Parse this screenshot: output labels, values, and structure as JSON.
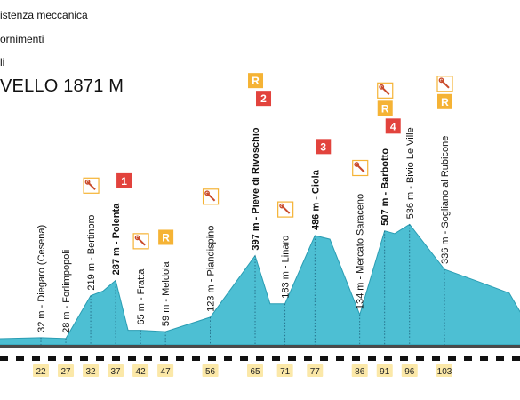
{
  "legend": [
    {
      "text": "istenza meccanica"
    },
    {
      "text": "ornimenti"
    },
    {
      "text": "li"
    }
  ],
  "peak_title": "VELLO 1871 M",
  "colors": {
    "fill": "#4dbfd3",
    "stroke": "#2a9db3",
    "badge_red": "#e2433d",
    "badge_orange": "#f5b335",
    "km_box": "#fbe8a8"
  },
  "chart_data": {
    "type": "area",
    "title": "",
    "xlabel": "",
    "ylabel": "",
    "x_unit": "km",
    "profile": [
      {
        "km": 0,
        "elev": 20
      },
      {
        "km": 22,
        "elev": 32
      },
      {
        "km": 27,
        "elev": 28
      },
      {
        "km": 32,
        "elev": 219
      },
      {
        "km": 34.5,
        "elev": 240
      },
      {
        "km": 37,
        "elev": 287
      },
      {
        "km": 39.5,
        "elev": 65
      },
      {
        "km": 42,
        "elev": 65
      },
      {
        "km": 47,
        "elev": 59
      },
      {
        "km": 56,
        "elev": 123
      },
      {
        "km": 65,
        "elev": 397
      },
      {
        "km": 68,
        "elev": 183
      },
      {
        "km": 71,
        "elev": 183
      },
      {
        "km": 77,
        "elev": 486
      },
      {
        "km": 80,
        "elev": 470
      },
      {
        "km": 86,
        "elev": 134
      },
      {
        "km": 91,
        "elev": 507
      },
      {
        "km": 93,
        "elev": 495
      },
      {
        "km": 96,
        "elev": 536
      },
      {
        "km": 103,
        "elev": 336
      },
      {
        "km": 110,
        "elev": 280
      },
      {
        "km": 116,
        "elev": 230
      },
      {
        "km": 121,
        "elev": 40
      }
    ],
    "points": [
      {
        "km": 22,
        "elev": 32,
        "label": "32 m - Diegaro (Cesena)",
        "bold": false
      },
      {
        "km": 27,
        "elev": 28,
        "label": "28 m - Forlimpopoli",
        "bold": false
      },
      {
        "km": 32,
        "elev": 219,
        "label": "219 m - Bertinoro",
        "bold": false
      },
      {
        "km": 37,
        "elev": 287,
        "label": "287 m - Polenta",
        "bold": true
      },
      {
        "km": 42,
        "elev": 65,
        "label": "65 m - Fratta",
        "bold": false
      },
      {
        "km": 47,
        "elev": 59,
        "label": "59 m - Meldola",
        "bold": false
      },
      {
        "km": 56,
        "elev": 123,
        "label": "123 m - Piandispino",
        "bold": false
      },
      {
        "km": 65,
        "elev": 397,
        "label": "397 m - Pieve di Rivoschio",
        "bold": true
      },
      {
        "km": 71,
        "elev": 183,
        "label": "183 m - Linaro",
        "bold": false
      },
      {
        "km": 77,
        "elev": 486,
        "label": "486 m - Ciola",
        "bold": true
      },
      {
        "km": 86,
        "elev": 134,
        "label": "134 m - Mercato Saraceno",
        "bold": false
      },
      {
        "km": 91,
        "elev": 507,
        "label": "507 m - Barbotto",
        "bold": true
      },
      {
        "km": 96,
        "elev": 536,
        "label": "536 m - Bivio Le Ville",
        "bold": false
      },
      {
        "km": 103,
        "elev": 336,
        "label": "336 m - Sogliano al Rubicone",
        "bold": false
      }
    ],
    "km_ticks": [
      "22",
      "27",
      "32",
      "37",
      "42",
      "47",
      "56",
      "65",
      "71",
      "77",
      "86",
      "91",
      "96",
      "103"
    ],
    "badges": [
      {
        "km": 37,
        "kind": "climb",
        "text": "1"
      },
      {
        "km": 65,
        "kind": "climb",
        "text": "2"
      },
      {
        "km": 77,
        "kind": "climb",
        "text": "3"
      },
      {
        "km": 91,
        "kind": "climb",
        "text": "4"
      },
      {
        "km": 65,
        "kind": "refresh",
        "text": "R"
      },
      {
        "km": 47,
        "kind": "refresh",
        "text": "R"
      },
      {
        "km": 91,
        "kind": "refresh",
        "text": "R"
      },
      {
        "km": 103,
        "kind": "refresh",
        "text": "R"
      },
      {
        "km": 32,
        "kind": "wrench",
        "text": ""
      },
      {
        "km": 42,
        "kind": "wrench",
        "text": ""
      },
      {
        "km": 56,
        "kind": "wrench",
        "text": ""
      },
      {
        "km": 71,
        "kind": "wrench",
        "text": ""
      },
      {
        "km": 86,
        "kind": "wrench",
        "text": ""
      },
      {
        "km": 91,
        "kind": "wrench",
        "text": ""
      },
      {
        "km": 103,
        "kind": "wrench",
        "text": ""
      }
    ]
  }
}
